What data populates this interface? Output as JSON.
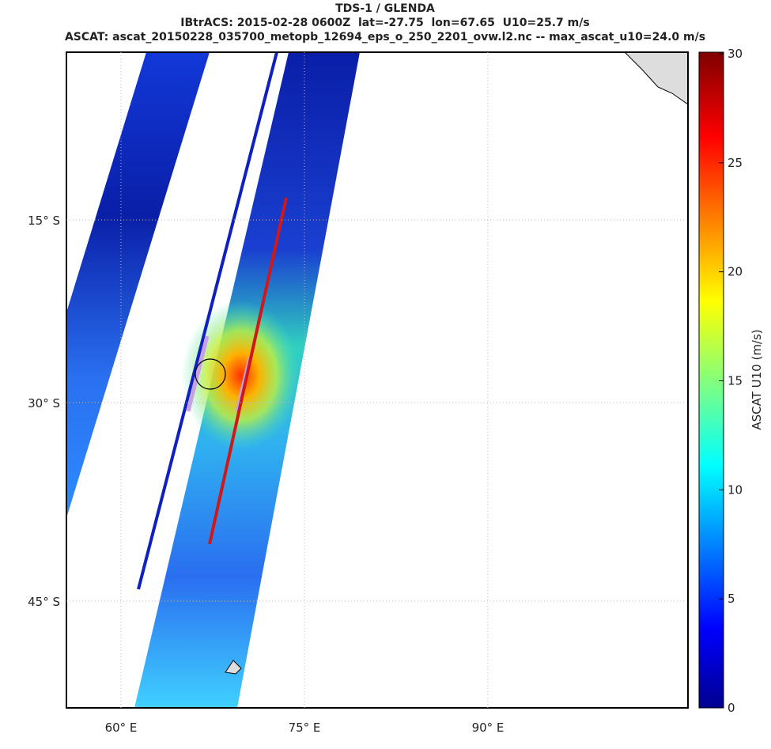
{
  "title": "TDS-1 / GLENDA",
  "subtitle": "IBtrACS: 2015-02-28 0600Z  lat=-27.75  lon=67.65  U10=25.7 m/s",
  "info": "ASCAT: ascat_20150228_035700_metopb_12694_eps_o_250_2201_ovw.l2.nc -- max_ascat_u10=24.0 m/s",
  "lat_labels": [
    "15° S",
    "30° S",
    "45° S"
  ],
  "lon_labels": [
    "60° E",
    "75° E",
    "90° E"
  ],
  "colorbar": {
    "label": "ASCAT U10 (m/s)",
    "lim": [
      0,
      30
    ],
    "ticks": [
      0,
      5,
      10,
      15,
      20,
      25,
      30
    ]
  }
}
